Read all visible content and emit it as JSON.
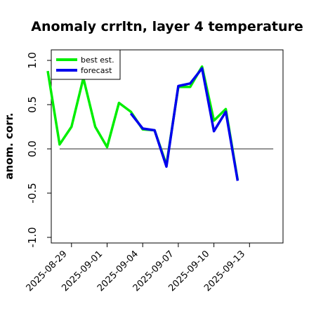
{
  "chart_data": {
    "type": "line",
    "title": "Anomaly crrltn, layer 4 temperature",
    "xlabel": "",
    "ylabel": "anom. corr.",
    "ylim": [
      -1.0,
      1.0
    ],
    "yticks": [
      "-1.0",
      "-0.5",
      "0.0",
      "0.5",
      "1.0"
    ],
    "xticks": [
      {
        "label": "2025-08-29",
        "day": 2,
        "color": "#000000"
      },
      {
        "label": "2025-09-01",
        "day": 5,
        "color": "#000000"
      },
      {
        "label": "2025-09-04",
        "day": 8,
        "color": "#228B22"
      },
      {
        "label": "2025-09-07",
        "day": 11,
        "color": "#000000"
      },
      {
        "label": "2025-09-10",
        "day": 14,
        "color": "#000000"
      },
      {
        "label": "2025-09-13",
        "day": 17,
        "color": "#000000"
      }
    ],
    "reference_line": 0.0,
    "legend_position": "top-left",
    "series": [
      {
        "name": "best est.",
        "color": "#00ee00",
        "x": [
          0,
          1,
          2,
          3,
          4,
          5,
          6,
          7,
          8,
          9,
          10,
          11,
          12,
          13,
          14,
          15,
          16,
          17
        ],
        "y": [
          0.88,
          0.05,
          0.25,
          0.8,
          0.25,
          0.02,
          0.52,
          0.42,
          0.22,
          0.21,
          -0.18,
          0.7,
          0.7,
          0.93,
          0.32,
          0.45,
          -0.35,
          null
        ]
      },
      {
        "name": "forecast",
        "color": "#0000ee",
        "x": [
          7,
          8,
          9,
          10,
          11,
          12,
          13,
          14,
          15,
          16
        ],
        "y": [
          0.4,
          0.23,
          0.21,
          -0.2,
          0.71,
          0.74,
          0.91,
          0.2,
          0.42,
          -0.36
        ]
      }
    ]
  }
}
